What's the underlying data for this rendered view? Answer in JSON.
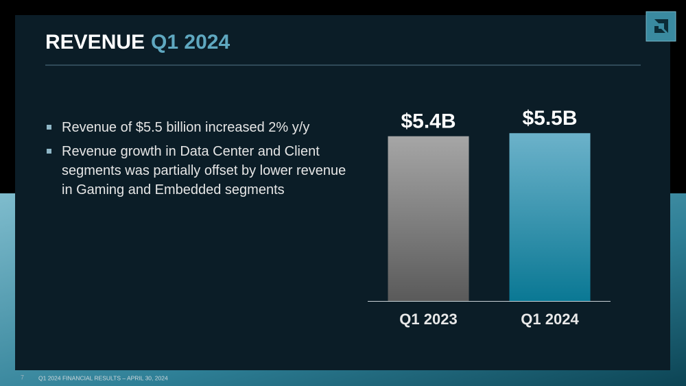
{
  "slide": {
    "title": {
      "main": "REVENUE",
      "highlight": "Q1 2024"
    },
    "bullets": [
      "Revenue of $5.5 billion increased 2% y/y",
      "Revenue growth in Data Center and Client segments was partially offset by lower revenue in Gaming and Embedded segments"
    ],
    "page_number": "7",
    "footer": "Q1 2024 FINANCIAL RESULTS – APRIL 30, 2024"
  },
  "chart_data": {
    "type": "bar",
    "categories": [
      "Q1 2023",
      "Q1 2024"
    ],
    "values": [
      5.4,
      5.5
    ],
    "value_labels": [
      "$5.4B",
      "$5.5B"
    ],
    "colors": [
      {
        "top": "#a6a6a6",
        "bottom": "#5a5a5a"
      },
      {
        "top": "#6cb2ca",
        "bottom": "#0a7894"
      }
    ]
  }
}
